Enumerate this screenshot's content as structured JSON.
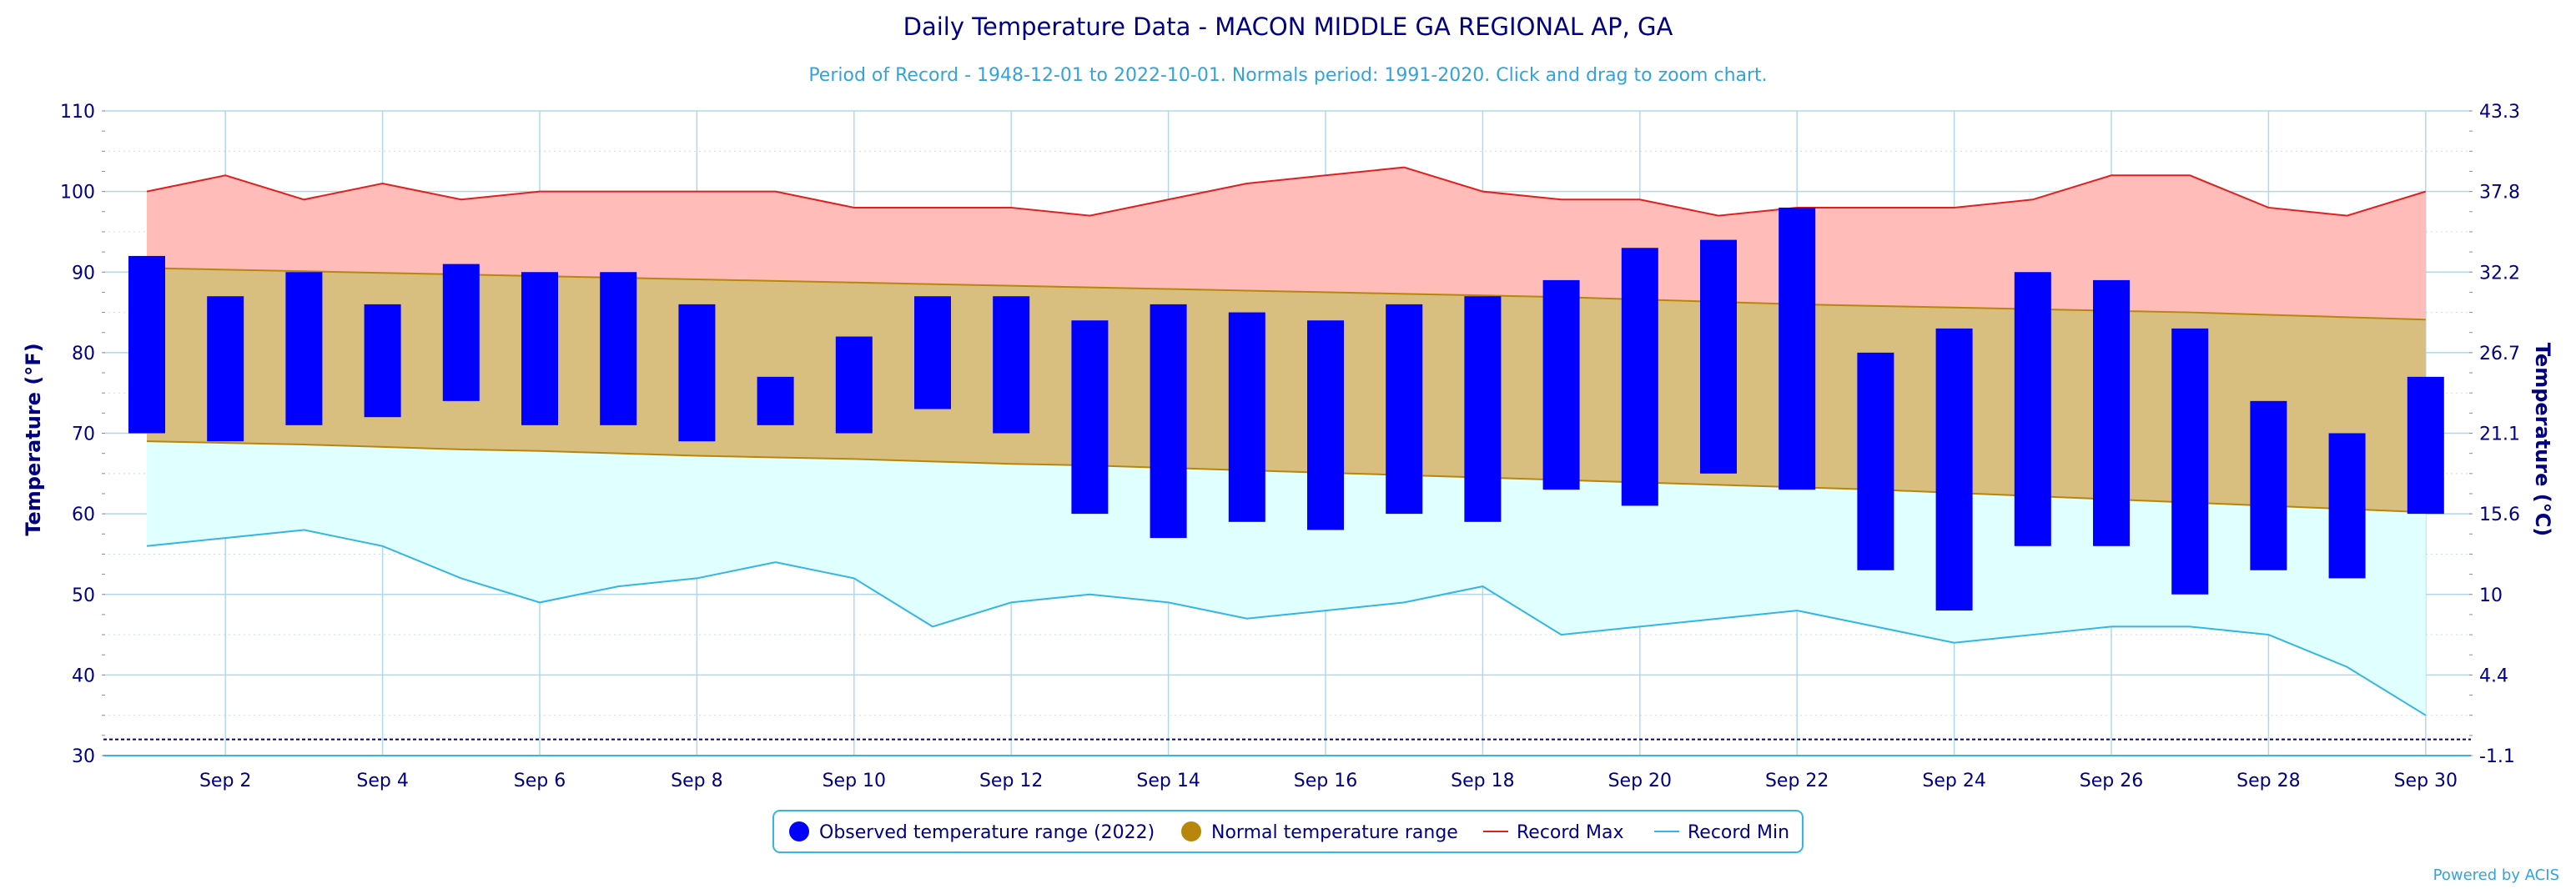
{
  "chart_data": {
    "type": "bar",
    "title": "Daily Temperature Data - MACON MIDDLE GA REGIONAL AP, GA",
    "subtitle": "Period of Record - 1948-12-01 to 2022-10-01. Normals period: 1991-2020. Click and drag to zoom chart.",
    "ylabel_left": "Temperature (°F)",
    "ylabel_right": "Temperature (°C)",
    "ylim": [
      30,
      110
    ],
    "y_ticks": [
      "30",
      "40",
      "50",
      "60",
      "70",
      "80",
      "90",
      "100",
      "110"
    ],
    "y_ticks_right": [
      "-1.1",
      "4.4",
      "10",
      "15.6",
      "21.1",
      "26.7",
      "32.2",
      "37.8",
      "43.3"
    ],
    "x_days": [
      1,
      2,
      3,
      4,
      5,
      6,
      7,
      8,
      9,
      10,
      11,
      12,
      13,
      14,
      15,
      16,
      17,
      18,
      19,
      20,
      21,
      22,
      23,
      24,
      25,
      26,
      27,
      28,
      29,
      30
    ],
    "x_tick_labels": [
      "Sep 2",
      "Sep 4",
      "Sep 6",
      "Sep 8",
      "Sep 10",
      "Sep 12",
      "Sep 14",
      "Sep 16",
      "Sep 18",
      "Sep 20",
      "Sep 22",
      "Sep 24",
      "Sep 26",
      "Sep 28",
      "Sep 30"
    ],
    "x_tick_days": [
      2,
      4,
      6,
      8,
      10,
      12,
      14,
      16,
      18,
      20,
      22,
      24,
      26,
      28,
      30
    ],
    "reference_line": 32,
    "series": [
      {
        "name": "Observed temperature range (2022)",
        "low": [
          70,
          69,
          71,
          72,
          74,
          71,
          71,
          69,
          71,
          70,
          73,
          70,
          60,
          57,
          59,
          58,
          60,
          59,
          63,
          61,
          65,
          63,
          53,
          48,
          56,
          56,
          50,
          53,
          52,
          60
        ],
        "high": [
          92,
          87,
          90,
          86,
          91,
          90,
          90,
          86,
          77,
          82,
          87,
          87,
          84,
          86,
          85,
          84,
          86,
          87,
          89,
          93,
          94,
          98,
          80,
          83,
          90,
          89,
          83,
          74,
          70,
          77
        ]
      },
      {
        "name": "Normal temperature range",
        "low": [
          69,
          68.8,
          68.6,
          68.3,
          68,
          67.8,
          67.5,
          67.2,
          67,
          66.8,
          66.5,
          66.2,
          66,
          65.7,
          65.4,
          65.1,
          64.8,
          64.5,
          64.2,
          63.9,
          63.6,
          63.3,
          63,
          62.6,
          62.2,
          61.8,
          61.4,
          61,
          60.6,
          60.2
        ],
        "high": [
          90.5,
          90.3,
          90.1,
          89.9,
          89.7,
          89.5,
          89.3,
          89.1,
          88.9,
          88.7,
          88.5,
          88.3,
          88.1,
          87.9,
          87.7,
          87.5,
          87.3,
          87.1,
          86.9,
          86.6,
          86.3,
          86,
          85.8,
          85.6,
          85.4,
          85.2,
          85,
          84.7,
          84.4,
          84.1
        ]
      },
      {
        "name": "Record Max",
        "values": [
          100,
          102,
          99,
          101,
          99,
          100,
          100,
          100,
          100,
          98,
          98,
          98,
          97,
          99,
          101,
          102,
          103,
          100,
          99,
          99,
          97,
          98,
          98,
          98,
          99,
          102,
          102,
          98,
          97,
          100
        ]
      },
      {
        "name": "Record Min",
        "values": [
          56,
          57,
          58,
          56,
          52,
          49,
          51,
          52,
          54,
          52,
          46,
          49,
          50,
          49,
          47,
          48,
          49,
          51,
          45,
          46,
          47,
          48,
          46,
          44,
          45,
          46,
          46,
          45,
          41,
          35
        ]
      }
    ],
    "colors": {
      "observed": "#0000ff",
      "normal_fill": "#d9bf7f",
      "normal_line": "#b8860b",
      "normal_marker": "#b8860b",
      "record_max_fill": "#ffbcb8",
      "record_max_line": "#e02020",
      "record_min_fill": "#e0ffff",
      "record_min_line": "#33b5e5",
      "axis_text": "#000080",
      "subtitle": "#33a3dc",
      "grid": "#b0d8ec"
    },
    "legend_position": "bottom-center",
    "credit": "Powered by ACIS"
  }
}
